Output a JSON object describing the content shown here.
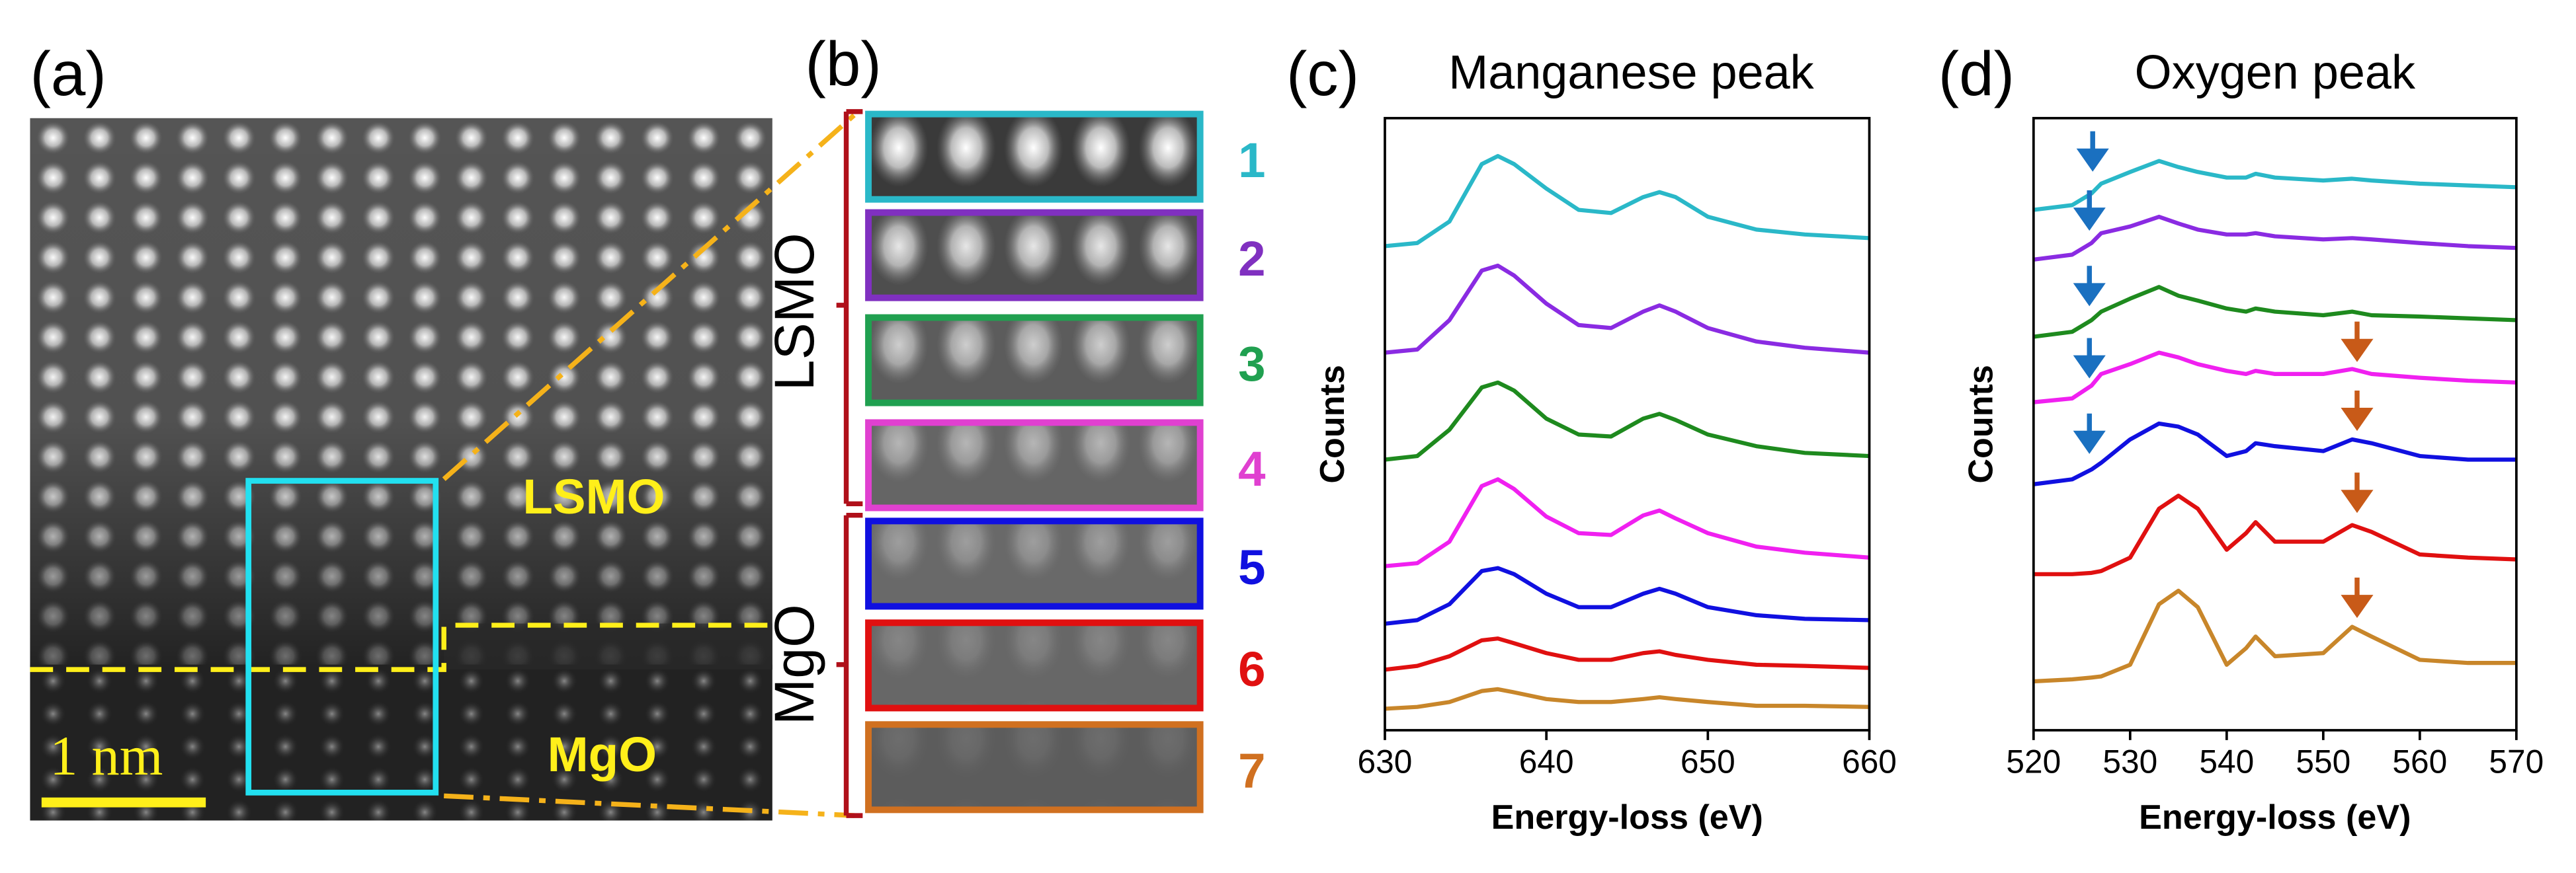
{
  "panel_a": {
    "label": "(a)",
    "top_layer": "LSMO",
    "bottom_layer": "MgO",
    "scale_bar": "1 nm"
  },
  "panel_b": {
    "label": "(b)",
    "top_group": "LSMO",
    "bottom_group": "MgO",
    "strips": [
      {
        "label": "1",
        "color": "#2ab8c8"
      },
      {
        "label": "2",
        "color": "#8030c0"
      },
      {
        "label": "3",
        "color": "#20a050"
      },
      {
        "label": "4",
        "color": "#e040d0"
      },
      {
        "label": "5",
        "color": "#1010e0"
      },
      {
        "label": "6",
        "color": "#e01010"
      },
      {
        "label": "7",
        "color": "#d07020"
      }
    ]
  },
  "chart_data": [
    {
      "type": "line",
      "label": "(c)",
      "title": "Manganese peak",
      "x_label": "Energy-loss (eV)",
      "y_label": "Counts",
      "x": [
        630,
        632,
        634,
        636,
        637,
        638,
        640,
        642,
        644,
        646,
        647,
        648,
        650,
        653,
        656,
        660
      ],
      "xlim": [
        630,
        660
      ],
      "xticks": [
        630,
        640,
        650,
        660
      ],
      "ylim": [
        0,
        100
      ],
      "series": [
        {
          "color": "#2ab8c8",
          "values": [
            79.1,
            79.6,
            83.1,
            92.5,
            93.8,
            92.5,
            88.5,
            85.0,
            84.5,
            87.1,
            87.9,
            87.1,
            83.9,
            81.8,
            81.0,
            80.4
          ]
        },
        {
          "color": "#8a2be2",
          "values": [
            61.7,
            62.2,
            67.0,
            75.1,
            75.9,
            74.3,
            69.7,
            66.2,
            65.7,
            68.4,
            69.4,
            68.4,
            65.7,
            63.5,
            62.5,
            61.7
          ]
        },
        {
          "color": "#1e8a1e",
          "values": [
            44.2,
            44.8,
            49.1,
            56.0,
            56.8,
            55.5,
            50.9,
            48.3,
            48.0,
            50.9,
            51.7,
            50.7,
            48.3,
            46.4,
            45.3,
            44.8
          ]
        },
        {
          "color": "#f020f0",
          "values": [
            26.8,
            27.3,
            30.8,
            39.9,
            41.0,
            39.4,
            34.9,
            32.2,
            31.9,
            35.1,
            35.9,
            34.6,
            32.2,
            30.0,
            29.0,
            28.2
          ]
        },
        {
          "color": "#1010e0",
          "values": [
            17.4,
            18.0,
            20.6,
            26.0,
            26.5,
            25.5,
            22.3,
            20.1,
            20.1,
            22.3,
            23.1,
            22.3,
            20.1,
            18.8,
            18.2,
            18.0
          ]
        },
        {
          "color": "#e01010",
          "values": [
            9.9,
            10.5,
            12.1,
            14.7,
            15.0,
            14.2,
            12.6,
            11.5,
            11.5,
            12.6,
            12.9,
            12.3,
            11.5,
            10.7,
            10.5,
            10.2
          ]
        },
        {
          "color": "#c8862a",
          "values": [
            3.5,
            3.8,
            4.6,
            6.4,
            6.7,
            6.2,
            5.1,
            4.6,
            4.6,
            5.1,
            5.4,
            5.1,
            4.6,
            4.0,
            4.0,
            3.8
          ]
        }
      ]
    },
    {
      "type": "line",
      "label": "(d)",
      "title": "Oxygen peak",
      "x_label": "Energy-loss (eV)",
      "y_label": "Counts",
      "x": [
        520,
        524,
        526,
        527,
        530,
        533,
        535,
        537,
        540,
        542,
        543,
        545,
        550,
        553,
        555,
        560,
        565,
        570
      ],
      "xlim": [
        520,
        570
      ],
      "xticks": [
        520,
        530,
        540,
        550,
        560,
        570
      ],
      "ylim": [
        0,
        100
      ],
      "series": [
        {
          "color": "#2ab8c8",
          "values": [
            85.0,
            85.8,
            87.7,
            89.3,
            91.2,
            93.0,
            92.0,
            91.2,
            90.3,
            90.3,
            90.9,
            90.3,
            89.8,
            90.1,
            89.8,
            89.3,
            89.0,
            88.7
          ]
        },
        {
          "color": "#8a2be2",
          "values": [
            76.9,
            77.7,
            79.6,
            81.2,
            82.3,
            83.9,
            82.8,
            81.8,
            81.0,
            81.0,
            81.2,
            80.7,
            80.2,
            80.4,
            80.2,
            79.6,
            79.1,
            78.8
          ]
        },
        {
          "color": "#1e8a1e",
          "values": [
            64.3,
            65.1,
            67.0,
            68.4,
            70.5,
            72.4,
            71.0,
            70.2,
            68.9,
            68.4,
            68.9,
            68.4,
            67.8,
            68.4,
            67.8,
            67.6,
            67.3,
            67.0
          ]
        },
        {
          "color": "#f020f0",
          "values": [
            53.6,
            54.2,
            56.3,
            58.2,
            59.8,
            61.7,
            60.9,
            59.8,
            58.7,
            58.2,
            58.7,
            58.2,
            58.2,
            59.0,
            58.2,
            57.6,
            57.1,
            56.8
          ]
        },
        {
          "color": "#1010e0",
          "values": [
            40.2,
            41.0,
            42.6,
            43.7,
            47.5,
            50.1,
            49.6,
            48.3,
            44.8,
            45.6,
            46.9,
            46.4,
            45.6,
            47.5,
            46.9,
            44.8,
            44.2,
            44.2
          ]
        },
        {
          "color": "#e01010",
          "values": [
            25.5,
            25.5,
            25.7,
            26.0,
            28.2,
            36.2,
            38.3,
            36.2,
            29.5,
            32.2,
            34.0,
            30.8,
            30.8,
            33.5,
            32.4,
            28.7,
            28.2,
            27.9
          ]
        },
        {
          "color": "#c8862a",
          "values": [
            8.0,
            8.3,
            8.6,
            8.8,
            10.7,
            20.6,
            22.8,
            20.1,
            10.7,
            13.4,
            15.3,
            12.1,
            12.6,
            16.9,
            15.3,
            11.5,
            11.0,
            11.0
          ]
        }
      ]
    }
  ]
}
